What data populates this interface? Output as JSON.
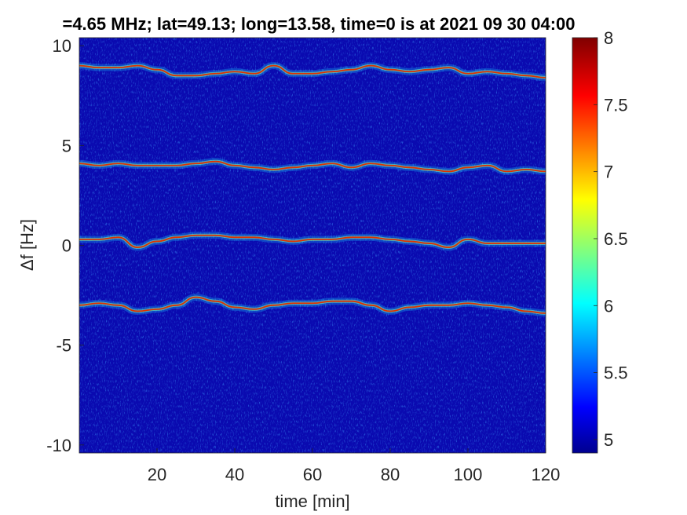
{
  "chart_data": {
    "type": "heatmap",
    "title": "=4.65 MHz;  lat=49.13; long=13.58, time=0 is at 2021 09 30 04:00",
    "xlabel": "time [min]",
    "ylabel": "Δf [Hz]",
    "xlim": [
      0,
      120
    ],
    "ylim": [
      -10.4,
      10.4
    ],
    "x_ticks": [
      20,
      40,
      60,
      80,
      100,
      120
    ],
    "y_ticks": [
      10,
      5,
      0,
      -5,
      -10
    ],
    "colorbar": {
      "range": [
        4.9,
        8
      ],
      "ticks": [
        5,
        5.5,
        6,
        6.5,
        7,
        7.5,
        8
      ],
      "colormap": "jet"
    },
    "series": [
      {
        "x": [
          0,
          5,
          10,
          15,
          20,
          25,
          30,
          35,
          40,
          45,
          50,
          55,
          60,
          65,
          70,
          75,
          80,
          85,
          90,
          95,
          100,
          105,
          110,
          115,
          120
        ],
        "y": [
          9.0,
          8.9,
          8.9,
          9.0,
          8.8,
          8.5,
          8.5,
          8.6,
          8.7,
          8.6,
          9.0,
          8.6,
          8.6,
          8.7,
          8.8,
          9.0,
          8.8,
          8.7,
          8.8,
          8.9,
          8.6,
          8.7,
          8.6,
          8.5,
          8.4
        ]
      },
      {
        "x": [
          0,
          5,
          10,
          15,
          20,
          25,
          30,
          35,
          40,
          45,
          50,
          55,
          60,
          65,
          70,
          75,
          80,
          85,
          90,
          95,
          100,
          105,
          110,
          115,
          120
        ],
        "y": [
          4.1,
          4.0,
          4.1,
          4.0,
          4.0,
          4.0,
          4.1,
          4.2,
          4.0,
          3.9,
          3.8,
          3.9,
          4.0,
          4.1,
          3.9,
          4.1,
          4.0,
          3.9,
          3.8,
          3.7,
          3.9,
          4.0,
          3.7,
          3.8,
          3.7
        ]
      },
      {
        "x": [
          0,
          5,
          10,
          15,
          20,
          25,
          30,
          35,
          40,
          45,
          50,
          55,
          60,
          65,
          70,
          75,
          80,
          85,
          90,
          95,
          100,
          105,
          110,
          115,
          120
        ],
        "y": [
          0.3,
          0.3,
          0.4,
          -0.1,
          0.2,
          0.4,
          0.5,
          0.5,
          0.4,
          0.4,
          0.3,
          0.2,
          0.3,
          0.3,
          0.4,
          0.4,
          0.3,
          0.2,
          0.1,
          -0.1,
          0.3,
          0.1,
          0.1,
          0.1,
          0.1
        ]
      },
      {
        "x": [
          0,
          5,
          10,
          15,
          20,
          25,
          30,
          35,
          40,
          45,
          50,
          55,
          60,
          65,
          70,
          75,
          80,
          85,
          90,
          95,
          100,
          105,
          110,
          115,
          120
        ],
        "y": [
          -3.0,
          -2.9,
          -3.0,
          -3.3,
          -3.2,
          -3.0,
          -2.6,
          -2.8,
          -3.1,
          -3.2,
          -3.0,
          -2.9,
          -2.9,
          -2.8,
          -2.8,
          -3.0,
          -3.3,
          -3.1,
          -3.0,
          -3.0,
          -2.9,
          -3.0,
          -3.1,
          -3.3,
          -3.4
        ]
      }
    ]
  }
}
